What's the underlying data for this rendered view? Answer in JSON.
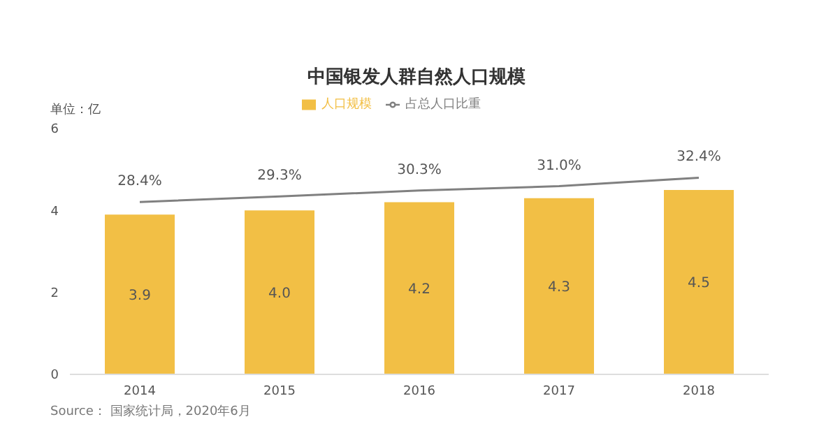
{
  "chart_data": {
    "type": "bar",
    "title": "中国银发人群自然人口规模",
    "ylabel": "单位：亿",
    "categories": [
      "2014",
      "2015",
      "2016",
      "2017",
      "2018"
    ],
    "series": [
      {
        "name": "人口规模",
        "color": "#f2bf45",
        "values": [
          3.9,
          4.0,
          4.2,
          4.3,
          4.5
        ],
        "value_labels": [
          "3.9",
          "4.0",
          "4.2",
          "4.3",
          "4.5"
        ]
      },
      {
        "name": "占总人口比重",
        "type": "line",
        "axis": "y2",
        "color": "#808080",
        "values": [
          28.4,
          29.3,
          30.3,
          31.0,
          32.4
        ],
        "value_labels": [
          "28.4%",
          "29.3%",
          "30.3%",
          "31.0%",
          "32.4%"
        ]
      }
    ],
    "ylim": [
      0,
      6
    ],
    "yticks": [
      0,
      2,
      4,
      6
    ],
    "grid": false,
    "legend": "top",
    "marker": "none",
    "annotations": [
      "Source： 国家统计局，2020年6月"
    ]
  }
}
